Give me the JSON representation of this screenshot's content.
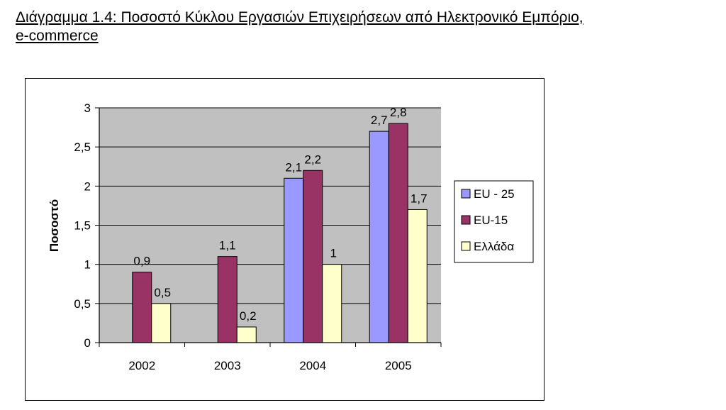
{
  "caption_line1": "Διάγραμμα 1.4: Ποσοστό Κύκλου Εργασιών Επιχειρήσεων από Ηλεκτρονικό Εμπόριο,",
  "caption_line2": "e-commerce",
  "chart_data": {
    "type": "bar",
    "categories": [
      "2002",
      "2003",
      "2004",
      "2005"
    ],
    "series": [
      {
        "name": "EU - 25",
        "values": [
          null,
          null,
          2.1,
          2.7
        ],
        "labels": [
          "",
          "",
          "2,1",
          "2,7"
        ],
        "color": "#9999ff"
      },
      {
        "name": "EU-15",
        "values": [
          0.9,
          1.1,
          2.2,
          2.8
        ],
        "labels": [
          "0,9",
          "1,1",
          "2,2",
          "2,8"
        ],
        "color": "#993366"
      },
      {
        "name": "Ελλάδα",
        "values": [
          0.5,
          0.2,
          1,
          1.7
        ],
        "labels": [
          "0,5",
          "0,2",
          "1",
          "1,7"
        ],
        "color": "#ffffcc"
      }
    ],
    "ylabel": "Ποσοστό",
    "xlabel": "",
    "ylim": [
      0,
      3
    ],
    "yticks": [
      0,
      0.5,
      1,
      1.5,
      2,
      2.5,
      3
    ],
    "ytick_labels": [
      "0",
      "0,5",
      "1",
      "1,5",
      "2",
      "2,5",
      "3"
    ],
    "plot_background": "#c0c0c0",
    "grid": true,
    "legend_position": "right"
  }
}
